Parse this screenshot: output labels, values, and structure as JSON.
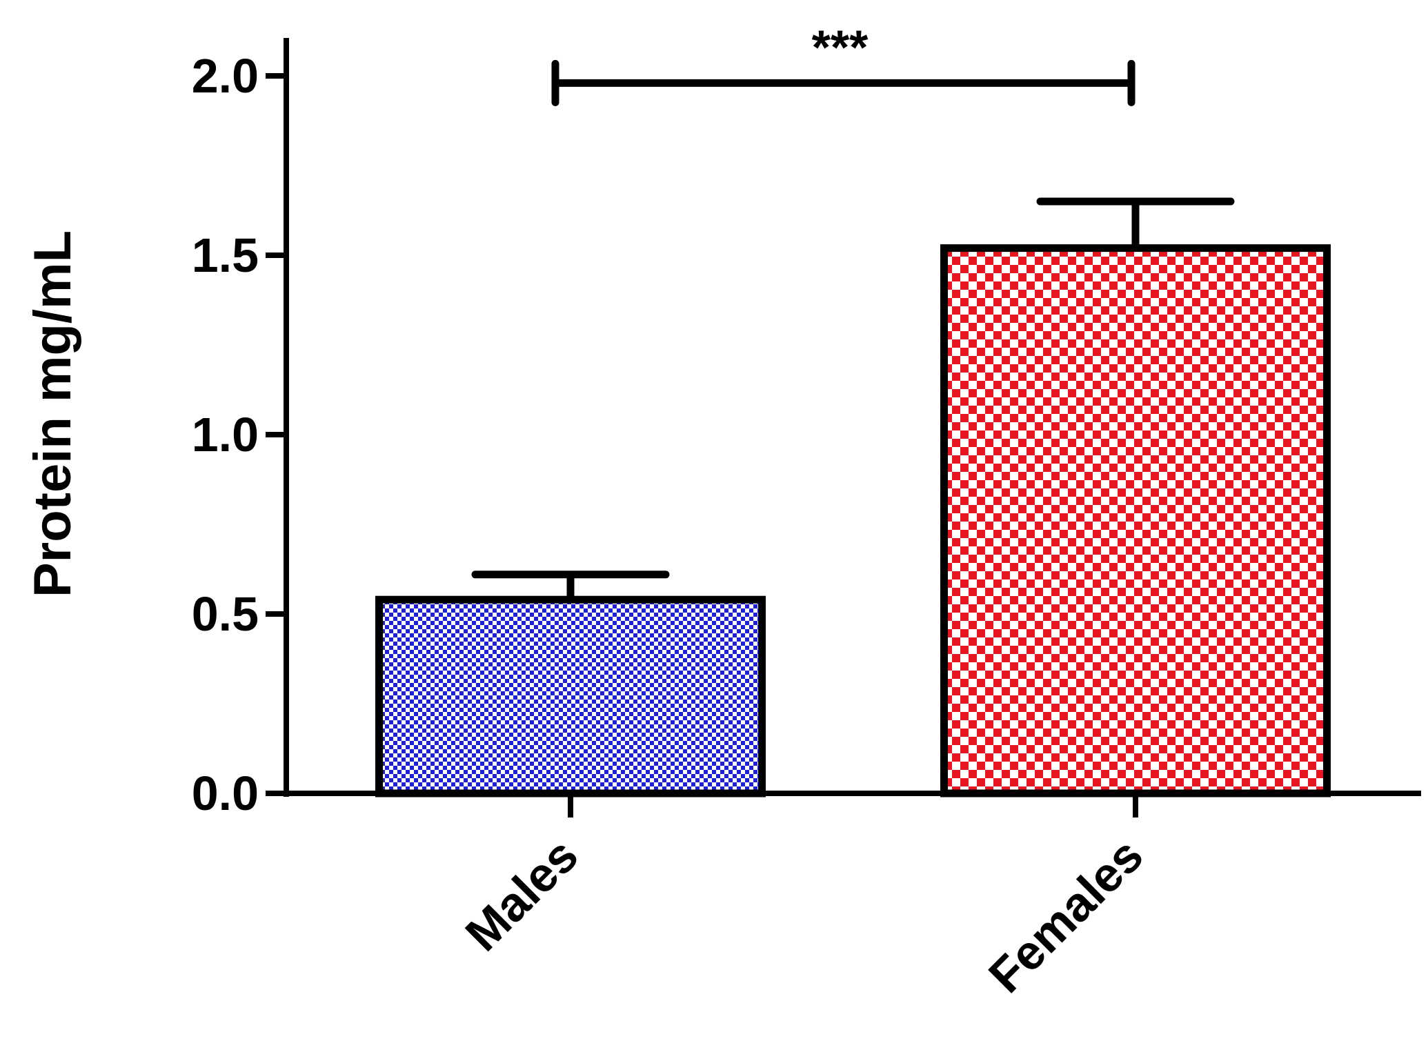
{
  "chart_data": {
    "type": "bar",
    "categories": [
      "Males",
      "Females"
    ],
    "values": [
      0.54,
      1.52
    ],
    "errors": [
      0.07,
      0.13
    ],
    "ylabel": "Protein mg/mL",
    "xlabel": "",
    "ylim": [
      0,
      2.0
    ],
    "yticks": [
      "0.0",
      "0.5",
      "1.0",
      "1.5",
      "2.0"
    ],
    "significance": {
      "label": "***",
      "between": [
        "Males",
        "Females"
      ],
      "level": 1.98
    },
    "colors": {
      "Males": "#1f1fd6",
      "Females": "#e8161e",
      "axis": "#000000"
    },
    "fill_pattern": "checkerboard",
    "grid": false
  }
}
